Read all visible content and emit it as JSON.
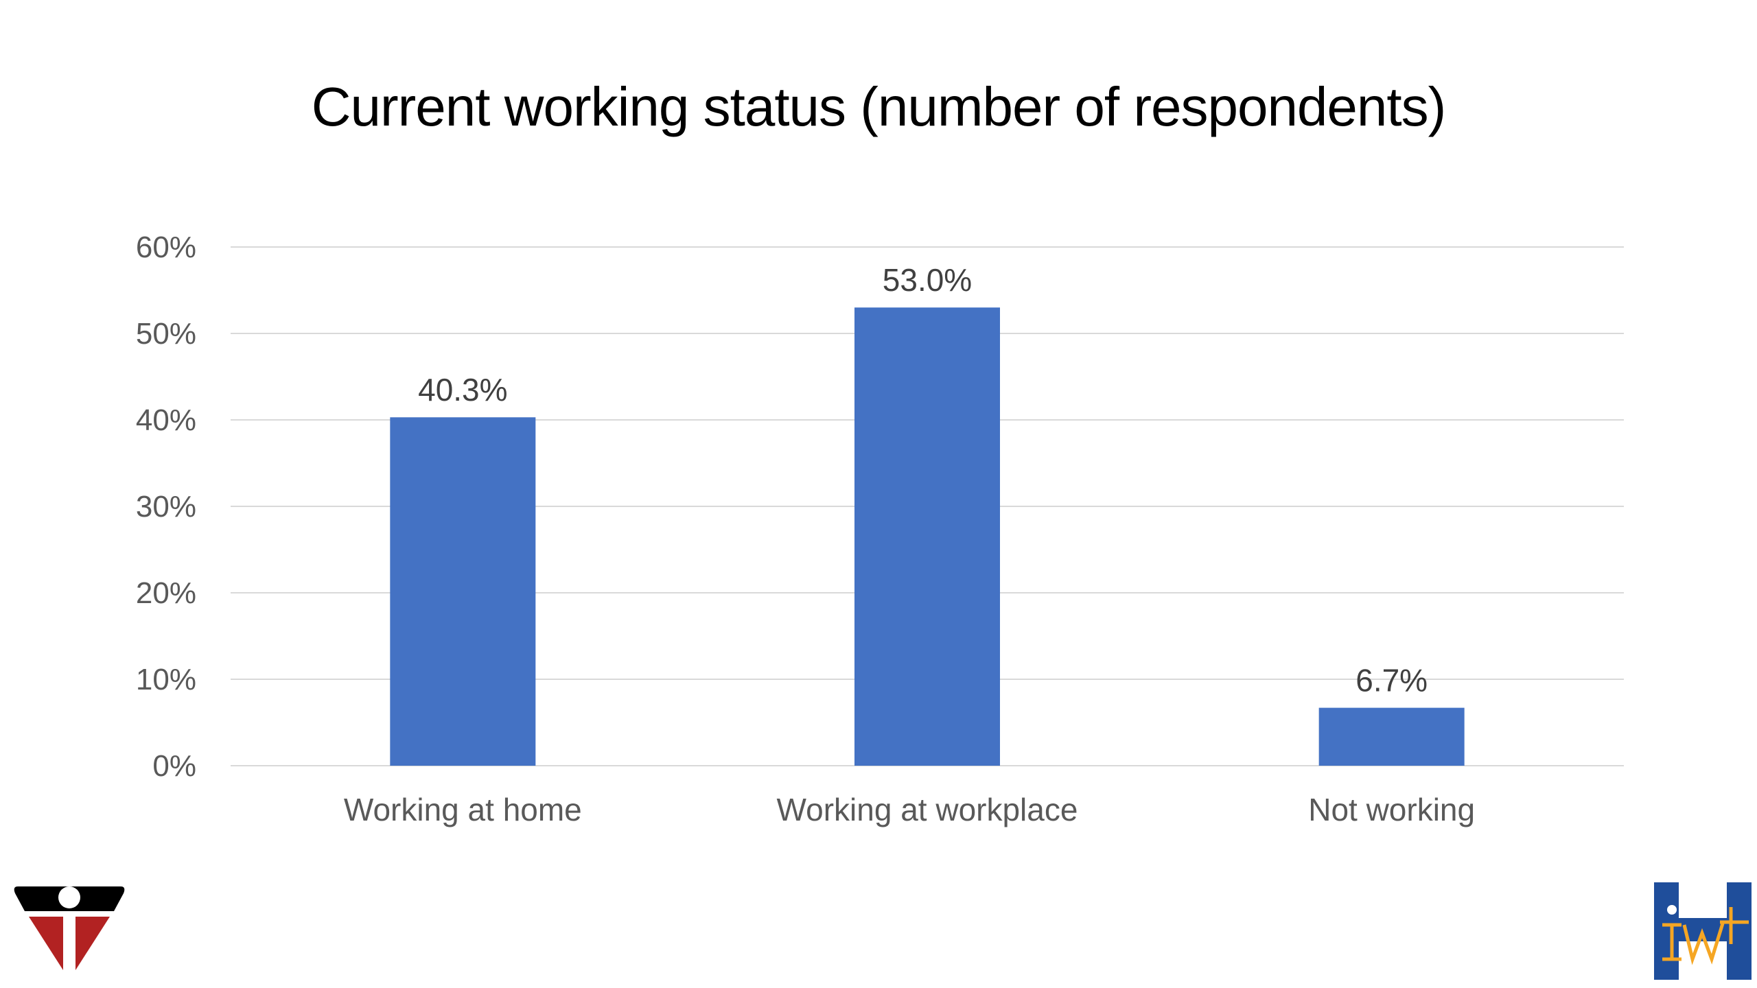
{
  "chart_data": {
    "type": "bar",
    "title": "Current working status (number of respondents)",
    "categories": [
      "Working at home",
      "Working at workplace",
      "Not working"
    ],
    "values": [
      40.3,
      53.0,
      6.7
    ],
    "data_labels": [
      "40.3%",
      "53.0%",
      "6.7%"
    ],
    "ylim": [
      0,
      60
    ],
    "yticks": [
      0,
      10,
      20,
      30,
      40,
      50,
      60
    ],
    "ytick_labels": [
      "0%",
      "10%",
      "20%",
      "30%",
      "40%",
      "50%",
      "60%"
    ],
    "xlabel": "",
    "ylabel": "",
    "grid": true,
    "legend": "none",
    "bar_color": "#4472C4"
  },
  "logos": {
    "left": {
      "icon": "helmet-logo-icon",
      "colors": [
        "#000000",
        "#B22222"
      ]
    },
    "right": {
      "icon": "iwh-logo-icon",
      "text": "IWH",
      "colors": [
        "#1F4E9B",
        "#F5A623"
      ]
    }
  }
}
